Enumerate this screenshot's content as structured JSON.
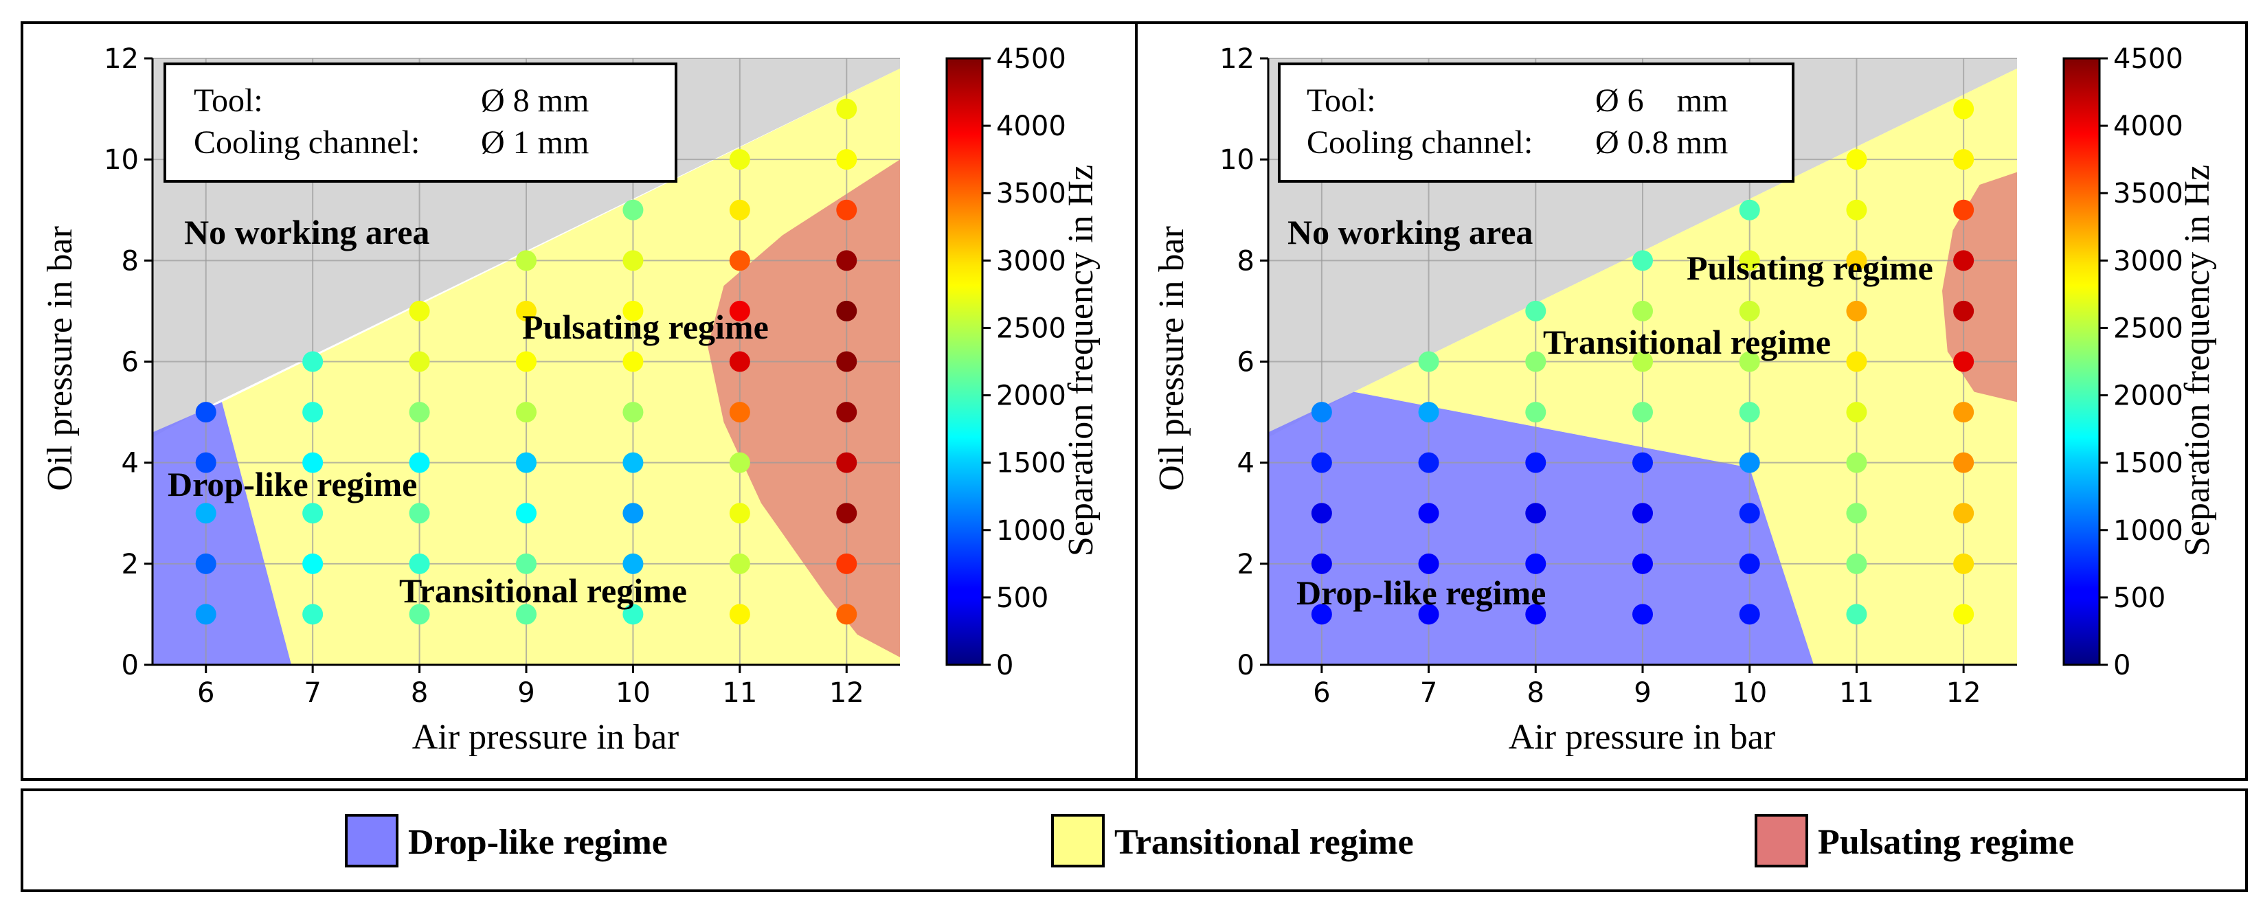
{
  "colors": {
    "drop": "#8080ff",
    "transitional": "#ffff88",
    "pulsating": "#e07878",
    "no_working": "#d6d6d6"
  },
  "colorbar": {
    "label": "Separation frequency in Hz",
    "ticks": [
      0,
      500,
      1000,
      1500,
      2000,
      2500,
      3000,
      3500,
      4000,
      4500
    ],
    "range": [
      0,
      4500
    ]
  },
  "legend": {
    "items": [
      {
        "key": "drop",
        "label": "Drop-like regime"
      },
      {
        "key": "transitional",
        "label": "Transitional regime"
      },
      {
        "key": "pulsating",
        "label": "Pulsating regime"
      }
    ]
  },
  "chart_data": [
    {
      "type": "scatter",
      "xlabel": "Air pressure in bar",
      "ylabel": "Oil pressure in bar",
      "xlim": [
        5.5,
        12.5
      ],
      "ylim": [
        0,
        12
      ],
      "xticks": [
        6,
        7,
        8,
        9,
        10,
        11,
        12
      ],
      "yticks": [
        0,
        2,
        4,
        6,
        8,
        10,
        12
      ],
      "info_box": {
        "tool_label": "Tool:",
        "tool_value": "Ø 8 mm",
        "channel_label": "Cooling channel:",
        "channel_value": "Ø 1 mm"
      },
      "region_labels": {
        "no_working": "No working area",
        "pulsating": "Pulsating regime",
        "drop": "Drop-like regime",
        "transitional": "Transitional regime"
      },
      "regions": {
        "no_working": [
          [
            5.5,
            4.5
          ],
          [
            5.5,
            12
          ],
          [
            12.5,
            12
          ],
          [
            12.5,
            11.8
          ],
          [
            6.1,
            5.2
          ],
          [
            5.5,
            4.5
          ]
        ],
        "drop": [
          [
            5.5,
            0
          ],
          [
            5.5,
            4.6
          ],
          [
            6.15,
            5.2
          ],
          [
            6.8,
            0
          ]
        ],
        "transitional": [
          [
            6.8,
            0
          ],
          [
            6.15,
            5.2
          ],
          [
            12.5,
            11.8
          ],
          [
            12.5,
            0
          ]
        ],
        "pulsating": [
          [
            12.5,
            0
          ],
          [
            12.5,
            10
          ],
          [
            11.4,
            8.5
          ],
          [
            10.85,
            7.5
          ],
          [
            10.7,
            6.3
          ],
          [
            10.85,
            4.8
          ],
          [
            11.2,
            3.2
          ],
          [
            11.8,
            1.4
          ],
          [
            12.1,
            0.6
          ],
          [
            12.5,
            0.15
          ]
        ]
      },
      "points": {
        "6": [
          [
            1,
            1250
          ],
          [
            2,
            1000
          ],
          [
            3,
            1350
          ],
          [
            4,
            900
          ],
          [
            5,
            900
          ]
        ],
        "7": [
          [
            1,
            1900
          ],
          [
            2,
            1700
          ],
          [
            3,
            1900
          ],
          [
            4,
            1650
          ],
          [
            5,
            1850
          ],
          [
            6,
            1900
          ]
        ],
        "8": [
          [
            1,
            2100
          ],
          [
            2,
            1900
          ],
          [
            3,
            2100
          ],
          [
            4,
            1650
          ],
          [
            5,
            2300
          ],
          [
            6,
            2700
          ],
          [
            7,
            2750
          ]
        ],
        "9": [
          [
            1,
            2100
          ],
          [
            2,
            2100
          ],
          [
            3,
            1700
          ],
          [
            4,
            1450
          ],
          [
            5,
            2500
          ],
          [
            6,
            2800
          ],
          [
            7,
            2900
          ],
          [
            8,
            2550
          ]
        ],
        "10": [
          [
            1,
            1900
          ],
          [
            2,
            1350
          ],
          [
            3,
            1250
          ],
          [
            4,
            1400
          ],
          [
            5,
            2400
          ],
          [
            6,
            2800
          ],
          [
            7,
            2800
          ],
          [
            8,
            2700
          ],
          [
            9,
            2200
          ]
        ],
        "11": [
          [
            1,
            2850
          ],
          [
            2,
            2550
          ],
          [
            3,
            2750
          ],
          [
            4,
            2500
          ],
          [
            5,
            3450
          ],
          [
            6,
            4100
          ],
          [
            7,
            4000
          ],
          [
            8,
            3550
          ],
          [
            9,
            2900
          ],
          [
            10,
            2750
          ]
        ],
        "12": [
          [
            1,
            3500
          ],
          [
            2,
            3700
          ],
          [
            3,
            4400
          ],
          [
            4,
            4200
          ],
          [
            5,
            4400
          ],
          [
            6,
            4450
          ],
          [
            7,
            4600
          ],
          [
            8,
            4400
          ],
          [
            9,
            3650
          ],
          [
            10,
            2800
          ],
          [
            11,
            2750
          ]
        ]
      }
    },
    {
      "type": "scatter",
      "xlabel": "Air pressure in bar",
      "ylabel": "Oil pressure in bar",
      "xlim": [
        5.5,
        12.5
      ],
      "ylim": [
        0,
        12
      ],
      "xticks": [
        6,
        7,
        8,
        9,
        10,
        11,
        12
      ],
      "yticks": [
        0,
        2,
        4,
        6,
        8,
        10,
        12
      ],
      "info_box": {
        "tool_label": "Tool:",
        "tool_value": "Ø 6    mm",
        "channel_label": "Cooling channel:",
        "channel_value": "Ø 0.8 mm"
      },
      "region_labels": {
        "no_working": "No working area",
        "pulsating": "Pulsating regime",
        "drop": "Drop-like regime",
        "transitional": "Transitional regime"
      },
      "regions": {
        "no_working": [
          [
            5.5,
            4.5
          ],
          [
            5.5,
            12
          ],
          [
            12.5,
            12
          ],
          [
            12.5,
            11.8
          ],
          [
            6.3,
            5.4
          ],
          [
            5.5,
            4.5
          ]
        ],
        "drop": [
          [
            5.5,
            0
          ],
          [
            5.5,
            4.6
          ],
          [
            6.3,
            5.4
          ],
          [
            10,
            3.9
          ],
          [
            10.6,
            0
          ]
        ],
        "transitional": [
          [
            10.6,
            0
          ],
          [
            10,
            3.9
          ],
          [
            6.3,
            5.4
          ],
          [
            12.5,
            11.8
          ],
          [
            12.5,
            0
          ]
        ],
        "pulsating": [
          [
            12.5,
            5.2
          ],
          [
            12.1,
            5.4
          ],
          [
            11.85,
            6.2
          ],
          [
            11.8,
            7.4
          ],
          [
            11.9,
            8.6
          ],
          [
            12.15,
            9.5
          ],
          [
            12.5,
            9.75
          ]
        ]
      },
      "points": {
        "6": [
          [
            1,
            600
          ],
          [
            2,
            500
          ],
          [
            3,
            450
          ],
          [
            4,
            700
          ],
          [
            5,
            1150
          ]
        ],
        "7": [
          [
            1,
            550
          ],
          [
            2,
            550
          ],
          [
            3,
            550
          ],
          [
            4,
            700
          ],
          [
            5,
            1300
          ],
          [
            6,
            2150
          ]
        ],
        "8": [
          [
            1,
            550
          ],
          [
            2,
            600
          ],
          [
            3,
            450
          ],
          [
            4,
            650
          ],
          [
            5,
            2200
          ],
          [
            6,
            2300
          ],
          [
            7,
            2050
          ]
        ],
        "9": [
          [
            1,
            600
          ],
          [
            2,
            550
          ],
          [
            3,
            500
          ],
          [
            4,
            700
          ],
          [
            5,
            2200
          ],
          [
            6,
            2500
          ],
          [
            7,
            2450
          ],
          [
            8,
            2000
          ]
        ],
        "10": [
          [
            1,
            650
          ],
          [
            2,
            650
          ],
          [
            3,
            700
          ],
          [
            4,
            1200
          ],
          [
            5,
            2100
          ],
          [
            6,
            2450
          ],
          [
            7,
            2600
          ],
          [
            8,
            2700
          ],
          [
            9,
            2000
          ]
        ],
        "11": [
          [
            1,
            2000
          ],
          [
            2,
            2250
          ],
          [
            3,
            2300
          ],
          [
            4,
            2400
          ],
          [
            5,
            2700
          ],
          [
            6,
            2900
          ],
          [
            7,
            3200
          ],
          [
            8,
            3000
          ],
          [
            9,
            2750
          ],
          [
            10,
            2800
          ]
        ],
        "12": [
          [
            1,
            2800
          ],
          [
            2,
            2950
          ],
          [
            3,
            3100
          ],
          [
            4,
            3300
          ],
          [
            5,
            3250
          ],
          [
            6,
            4050
          ],
          [
            7,
            4200
          ],
          [
            8,
            4150
          ],
          [
            9,
            3650
          ],
          [
            10,
            2850
          ],
          [
            11,
            2800
          ]
        ]
      }
    }
  ]
}
